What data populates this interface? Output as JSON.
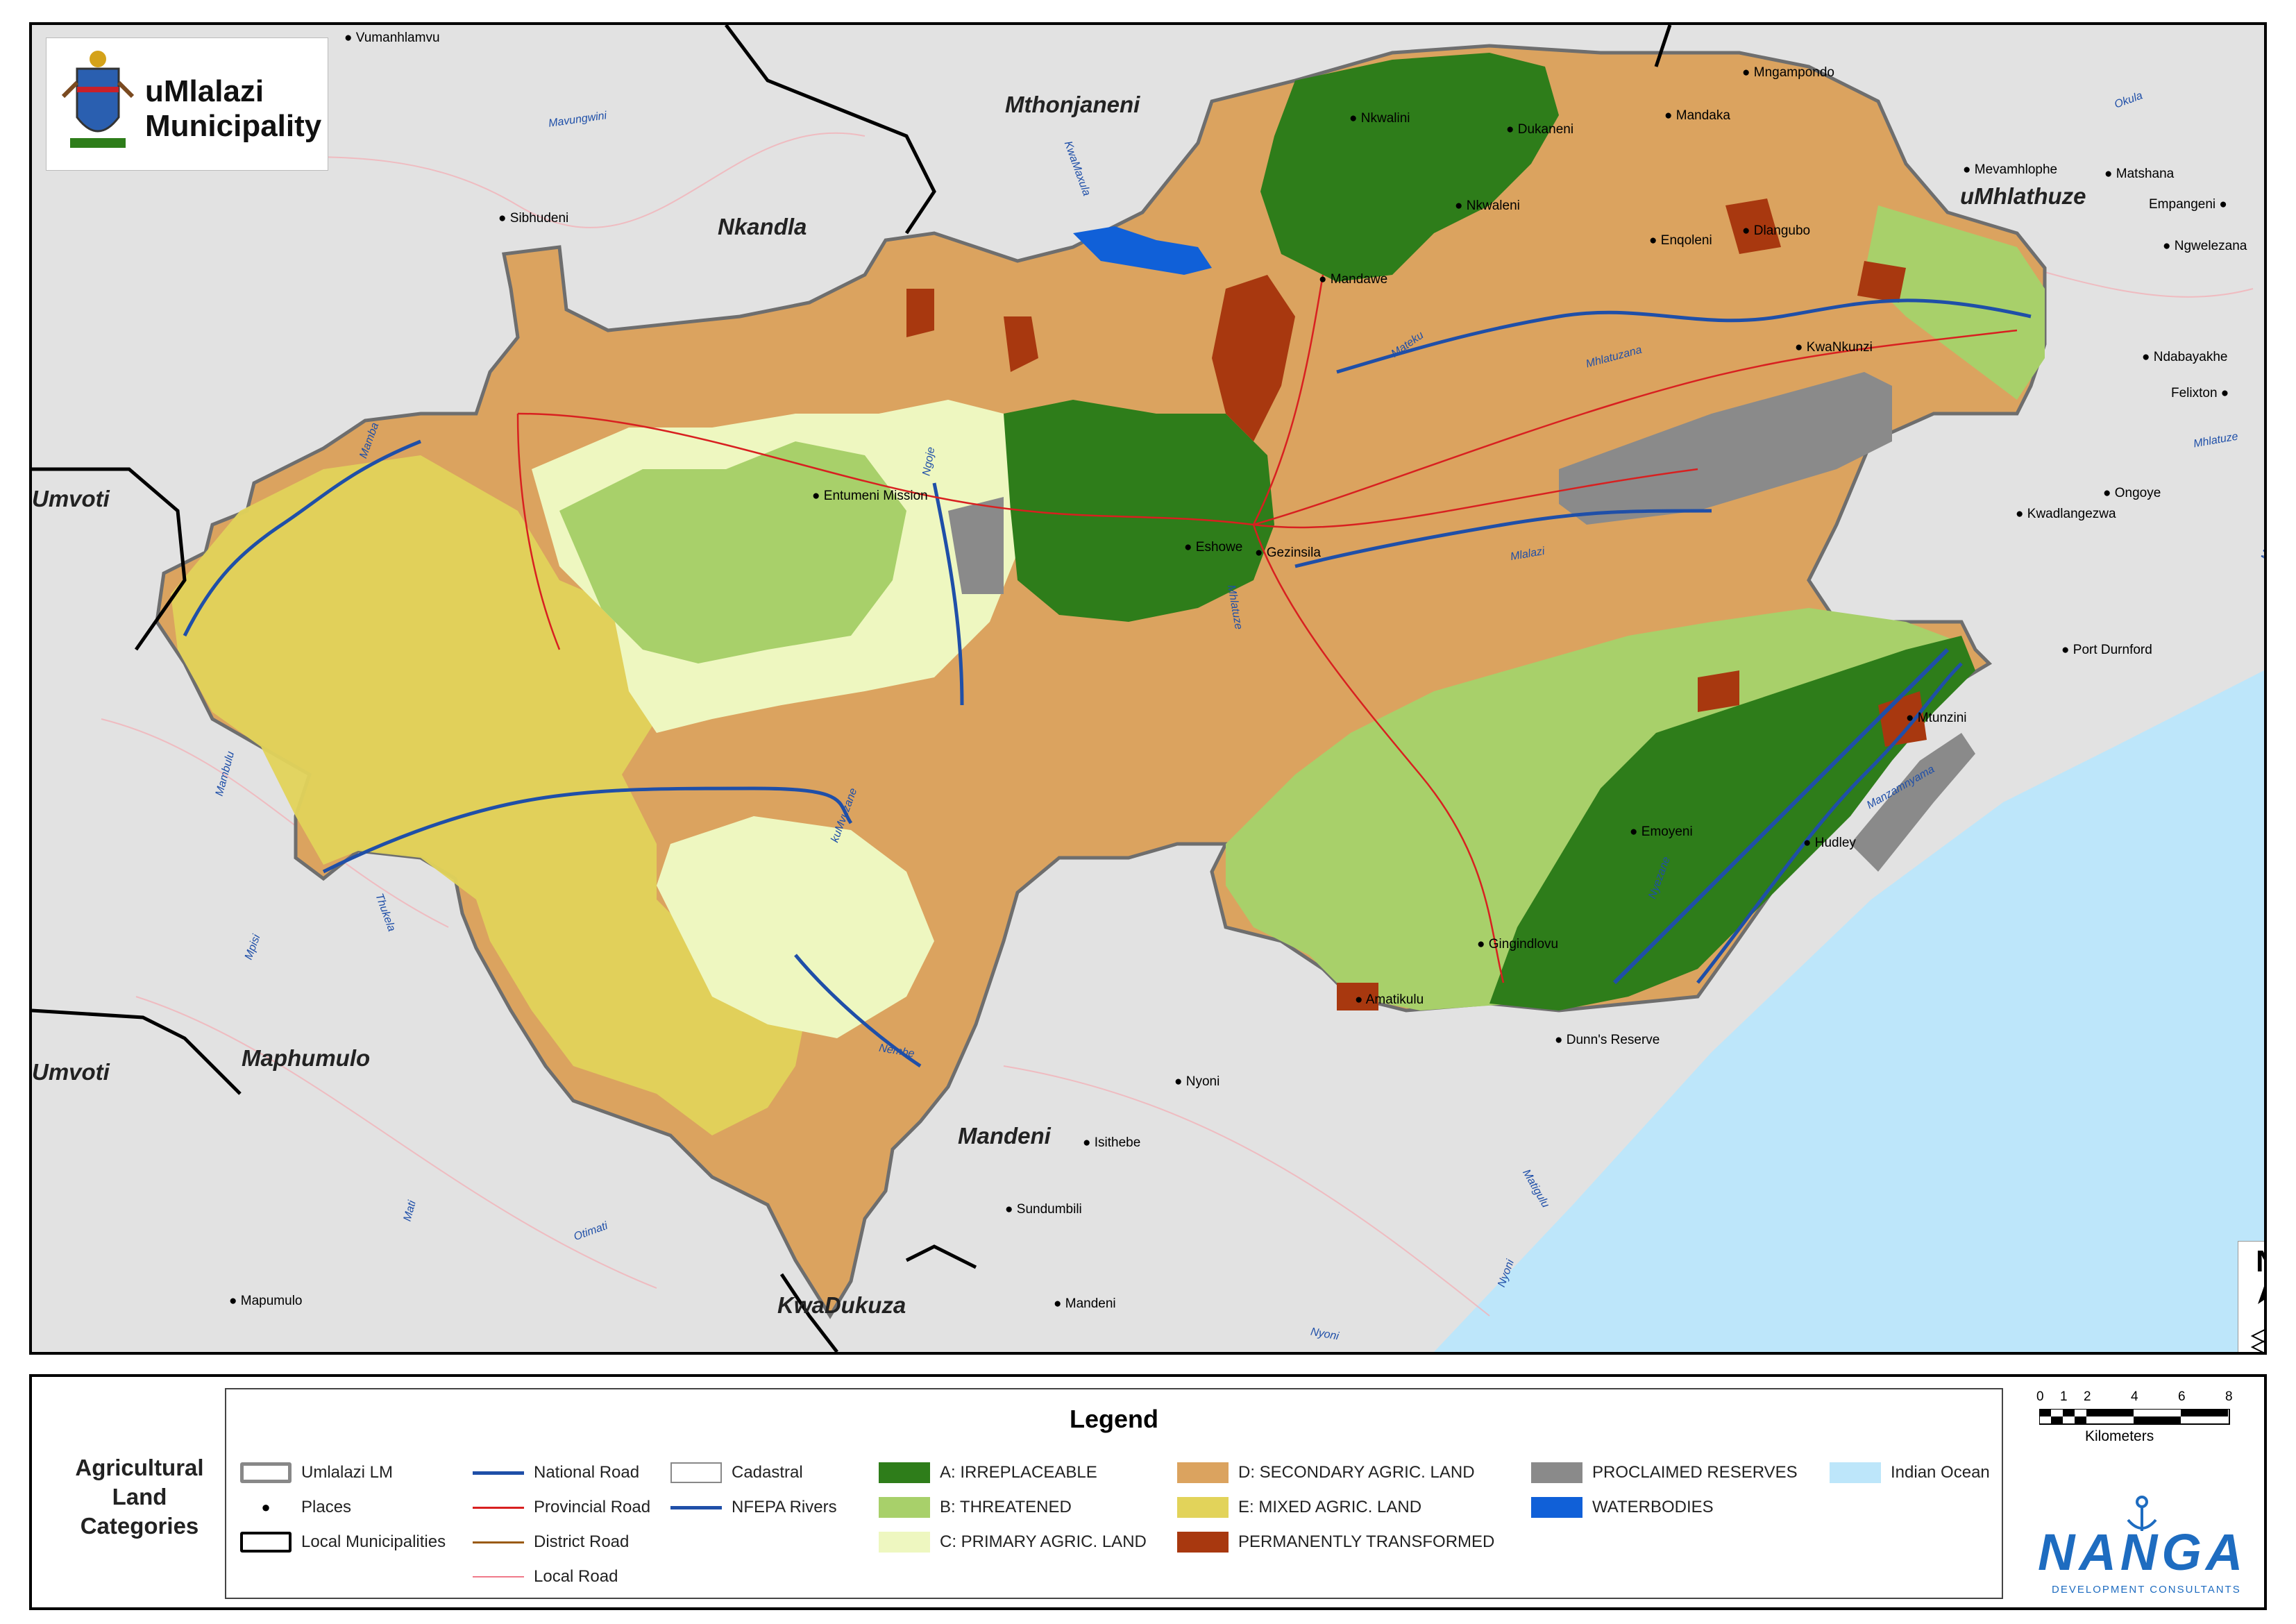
{
  "logo": {
    "line1": "uMlalazi",
    "line2": "Municipality"
  },
  "regions": {
    "mthonjaneni": "Mthonjaneni",
    "nkandla": "Nkandla",
    "umhlathuze": "uMhlathuze",
    "umvoti_top": "Umvoti",
    "umvoti_bottom": "Umvoti",
    "maphumulo": "Maphumulo",
    "mandeni": "Mandeni",
    "kwadukuza": "KwaDukuza"
  },
  "places": {
    "vumanhlamvu": "Vumanhlamvu",
    "sibhudeni": "Sibhudeni",
    "nkwalini": "Nkwalini",
    "dukaneni": "Dukaneni",
    "mngampondo": "Mngampondo",
    "mandaka": "Mandaka",
    "nkwaleni": "Nkwaleni",
    "mevamhlophe": "Mevamhlophe",
    "matshana": "Matshana",
    "empangeni": "Empangeni",
    "ngwelezana": "Ngwelezana",
    "enqoleni": "Enqoleni",
    "dlangubo": "Dlangubo",
    "mandawe": "Mandawe",
    "kwankunzi": "KwaNkunzi",
    "ndabayakhe": "Ndabayakhe",
    "felixton": "Felixton",
    "ongoye": "Ongoye",
    "kwadlangezwa": "Kwadlangezwa",
    "entumeni": "Entumeni Mission",
    "eshowe": "Eshowe",
    "gezinsila": "Gezinsila",
    "port_durnford": "Port Durnford",
    "mtunzini": "Mtunzini",
    "emoyeni": "Emoyeni",
    "hudley": "Hudley",
    "gingindlovu": "Gingindlovu",
    "amatikulu": "Amatikulu",
    "dunns_reserve": "Dunn's Reserve",
    "nyoni": "Nyoni",
    "isithebe": "Isithebe",
    "sundumbili": "Sundumbili",
    "mandeni": "Mandeni",
    "mapumulo": "Mapumulo"
  },
  "rivers": {
    "mavungwini": "Mavungwini",
    "kwamaxula": "KwaMaxula",
    "okula": "Okula",
    "mateku": "Mateku",
    "mhlatuzana": "Mhlatuzana",
    "mhlatuze": "Mhlatuze",
    "mamba": "Mamba",
    "ngoje": "Ngoje",
    "mlalazi": "Mlalazi",
    "mzingwenya": "Mzingwenya",
    "mbulu": "Mambulu",
    "mvuzane": "kuMvuzane",
    "manzamnyama": "Manzamnyama",
    "nyezane": "Nyezane",
    "thukela": "Thukela",
    "mpisi": "Mpisi",
    "nembe": "Nembe",
    "matigulu": "Matigulu",
    "mati": "Mati",
    "otimati": "Otimati",
    "nyoni_r1": "Nyoni",
    "nyoni_r2": "Nyoni",
    "mhlatuze_small": "Mhlatuze"
  },
  "north_arrow": "N",
  "sidebar_title": [
    "Agricultural",
    "Land",
    "Categories"
  ],
  "legend": {
    "title": "Legend",
    "items": [
      {
        "label": "Umlalazi LM",
        "symbol": "boundary-gray"
      },
      {
        "label": "Places",
        "symbol": "dot"
      },
      {
        "label": "Local Municipalities",
        "symbol": "boundary-black"
      },
      {
        "label": "National Road",
        "symbol": "line",
        "color": "#1f4fa8"
      },
      {
        "label": "Provincial Road",
        "symbol": "line",
        "color": "#d82020"
      },
      {
        "label": "District Road",
        "symbol": "line",
        "color": "#9a5a10"
      },
      {
        "label": "Local Road",
        "symbol": "line",
        "color": "#f07a8a"
      },
      {
        "label": "Cadastral",
        "symbol": "outline"
      },
      {
        "label": "NFEPA Rivers",
        "symbol": "line",
        "color": "#1f4fa8"
      },
      {
        "label": "A: IRREPLACEABLE",
        "color": "#2e7d1a"
      },
      {
        "label": "B: THREATENED",
        "color": "#a8d06a"
      },
      {
        "label": "C: PRIMARY AGRIC. LAND",
        "color": "#eef7c0"
      },
      {
        "label": "D: SECONDARY AGRIC. LAND",
        "color": "#dba35f"
      },
      {
        "label": "E: MIXED AGRIC. LAND",
        "color": "#e2d35a"
      },
      {
        "label": "PERMANENTLY TRANSFORMED",
        "color": "#a8380f"
      },
      {
        "label": "PROCLAIMED RESERVES",
        "color": "#8a8a8a"
      },
      {
        "label": "WATERBODIES",
        "color": "#1060d8"
      },
      {
        "label": "Indian Ocean",
        "color": "#bde6fa"
      }
    ]
  },
  "scale": {
    "ticks": [
      "0",
      "1",
      "2",
      "4",
      "6",
      "8"
    ],
    "unit": "Kilometers"
  },
  "consultant": {
    "name": "NANGA",
    "tagline": "DEVELOPMENT CONSULTANTS"
  },
  "colors": {
    "background": "#e2e2e2",
    "ocean": "#bde6fa",
    "irreplaceable": "#2e7d1a",
    "threatened": "#a8d06a",
    "primary": "#eef7c0",
    "secondary": "#dba35f",
    "mixed": "#e2d35a",
    "transformed": "#a8380f",
    "reserves": "#8a8a8a",
    "water": "#1060d8"
  }
}
